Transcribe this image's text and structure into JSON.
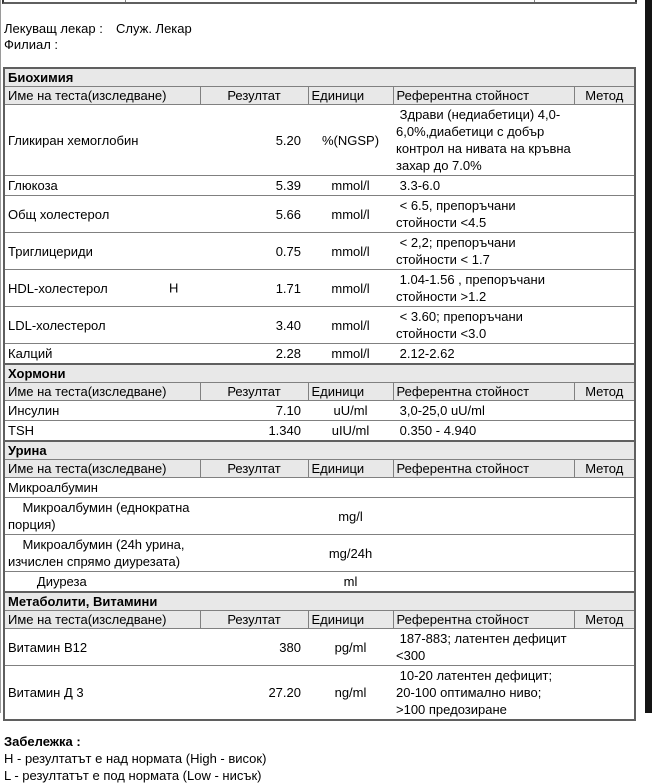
{
  "head": {
    "doctor_label": "Лекуващ лекар :",
    "doctor_value": "Служ. Лекар",
    "branch_label": "Филиал :"
  },
  "columns": [
    "Име на теста(изследване)",
    "Резултат",
    "Единици",
    "Референтна стойност",
    "Метод"
  ],
  "sections": [
    {
      "title": "Биохимия",
      "rows": [
        {
          "name": "Гликиран хемоглобин",
          "flag": "",
          "result": "5.20",
          "units": "%(NGSP)",
          "reference": " Здрави (недиабетици) 4,0-6,0%,диабетици с добър контрол на нивата на кръвна захар до 7.0%",
          "method": ""
        },
        {
          "name": "Глюкоза",
          "flag": "",
          "result": "5.39",
          "units": "mmol/l",
          "reference": " 3.3-6.0",
          "method": ""
        },
        {
          "name": "Общ холестерол",
          "flag": "",
          "result": "5.66",
          "units": "mmol/l",
          "reference": " < 6.5, препоръчани стойности <4.5",
          "method": ""
        },
        {
          "name": "Триглицериди",
          "flag": "",
          "result": "0.75",
          "units": "mmol/l",
          "reference": " < 2,2; препоръчани стойности < 1.7",
          "method": ""
        },
        {
          "name": "HDL-холестерол",
          "flag": "H",
          "result": "1.71",
          "units": "mmol/l",
          "reference": " 1.04-1.56 , препоръчани стойности >1.2",
          "method": ""
        },
        {
          "name": "LDL-холестерол",
          "flag": "",
          "result": "3.40",
          "units": "mmol/l",
          "reference": " < 3.60; препоръчани стойности <3.0",
          "method": ""
        },
        {
          "name": "Калций",
          "flag": "",
          "result": "2.28",
          "units": "mmol/l",
          "reference": " 2.12-2.62",
          "method": ""
        }
      ]
    },
    {
      "title": "Хормони",
      "rows": [
        {
          "name": "Инсулин",
          "flag": "",
          "result": "7.10",
          "units": "uU/ml",
          "reference": " 3,0-25,0 uU/ml",
          "method": ""
        },
        {
          "name": "TSH",
          "flag": "",
          "result": "1.340",
          "units": "uIU/ml",
          "reference": " 0.350 - 4.940",
          "method": ""
        }
      ]
    },
    {
      "title": "Урина",
      "rows": [
        {
          "name": "Микроалбумин",
          "group": true
        },
        {
          "name": "    Микроалбумин (еднократна порция)",
          "flag": "",
          "result": "",
          "units": "mg/l",
          "reference": "",
          "method": ""
        },
        {
          "name": "    Микроалбумин (24h урина, изчислен спрямо диурезата)",
          "flag": "",
          "result": "",
          "units": "mg/24h",
          "reference": "",
          "method": ""
        },
        {
          "name": "        Диуреза",
          "flag": "",
          "result": "",
          "units": "ml",
          "reference": "",
          "method": ""
        }
      ]
    },
    {
      "title": "Метаболити, Витамини",
      "rows": [
        {
          "name": "Витамин B12",
          "flag": "",
          "result": "380",
          "units": "pg/ml",
          "reference": " 187-883; латентен дефицит <300",
          "method": ""
        },
        {
          "name": "Витамин Д 3",
          "flag": "",
          "result": "27.20",
          "units": "ng/ml",
          "reference": " 10-20 латентен дефицит; 20-100 оптимално ниво; >100 предозиране",
          "method": ""
        }
      ]
    }
  ],
  "note": {
    "title": "Забележка :",
    "lines": [
      "H - резултатът е над нормата (High - висок)",
      "L - резултатът е под нормата (Low - нисък)"
    ]
  },
  "colors": {
    "band_bg": "#e8e8e8",
    "row_border": "#808080",
    "table_border": "#5f5f5f",
    "scrollbar": "#141414",
    "text": "#000000"
  }
}
